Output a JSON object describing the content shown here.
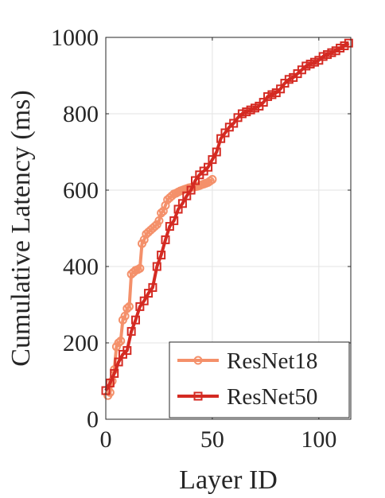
{
  "chart_data": {
    "type": "line",
    "title": "",
    "xlabel": "Layer ID",
    "ylabel": "Cumulative Latency (ms)",
    "xlim": [
      0,
      115
    ],
    "ylim": [
      0,
      1000
    ],
    "xticks": [
      0,
      50,
      100
    ],
    "yticks": [
      0,
      200,
      400,
      600,
      800,
      1000
    ],
    "grid": true,
    "legend_position": "bottom-right",
    "series": [
      {
        "name": "ResNet18",
        "color": "#f4906a",
        "marker": "circle",
        "x": [
          1,
          2,
          3,
          4,
          5,
          6,
          7,
          8,
          9,
          10,
          11,
          12,
          13,
          14,
          15,
          16,
          17,
          18,
          19,
          20,
          21,
          22,
          23,
          24,
          25,
          26,
          27,
          28,
          29,
          30,
          31,
          32,
          33,
          34,
          35,
          36,
          37,
          38,
          39,
          40,
          41,
          42,
          43,
          44,
          45,
          46,
          47,
          48,
          49,
          50
        ],
        "y": [
          62,
          70,
          100,
          130,
          190,
          200,
          205,
          260,
          270,
          290,
          295,
          380,
          385,
          390,
          392,
          395,
          460,
          470,
          485,
          490,
          495,
          500,
          505,
          510,
          520,
          540,
          545,
          560,
          575,
          580,
          585,
          590,
          592,
          595,
          598,
          600,
          602,
          604,
          606,
          607,
          608,
          609,
          610,
          612,
          614,
          616,
          618,
          620,
          624,
          628
        ]
      },
      {
        "name": "ResNet50",
        "color": "#d42a22",
        "marker": "square",
        "x": [
          0,
          2,
          4,
          6,
          8,
          10,
          12,
          14,
          16,
          18,
          20,
          22,
          24,
          26,
          28,
          30,
          32,
          34,
          36,
          38,
          40,
          42,
          44,
          46,
          48,
          50,
          52,
          54,
          56,
          58,
          60,
          62,
          64,
          66,
          68,
          70,
          72,
          74,
          76,
          78,
          80,
          82,
          84,
          86,
          88,
          90,
          92,
          94,
          96,
          98,
          100,
          102,
          104,
          106,
          108,
          110,
          112,
          114
        ],
        "y": [
          75,
          95,
          120,
          150,
          170,
          180,
          230,
          260,
          295,
          310,
          330,
          345,
          400,
          430,
          470,
          505,
          520,
          550,
          565,
          585,
          600,
          625,
          640,
          650,
          660,
          680,
          700,
          735,
          750,
          765,
          775,
          790,
          800,
          805,
          810,
          815,
          820,
          830,
          845,
          850,
          855,
          865,
          880,
          890,
          895,
          905,
          915,
          925,
          930,
          935,
          940,
          950,
          955,
          960,
          965,
          972,
          978,
          985
        ]
      }
    ]
  }
}
